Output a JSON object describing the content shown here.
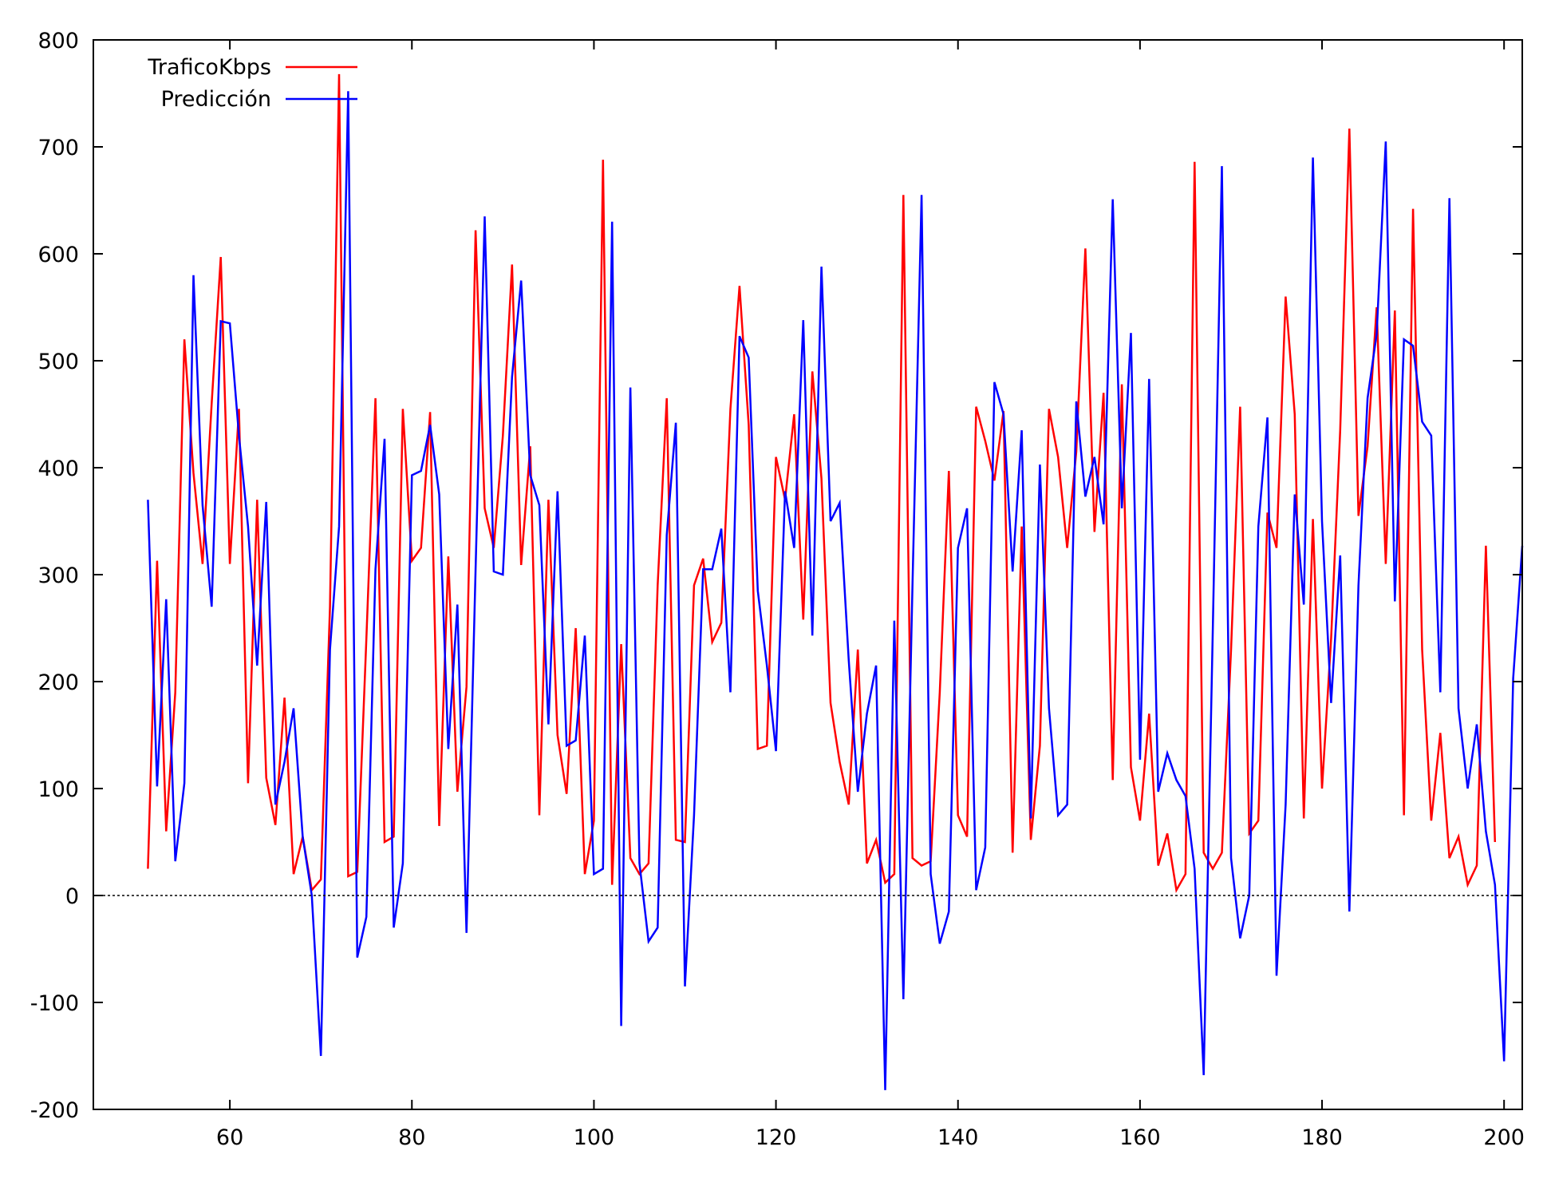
{
  "chart_data": {
    "type": "line",
    "title": "",
    "xlabel": "",
    "ylabel": "",
    "xlim": [
      45,
      202
    ],
    "ylim": [
      -200,
      800
    ],
    "x_ticks": [
      60,
      80,
      100,
      120,
      140,
      160,
      180,
      200
    ],
    "y_ticks": [
      -200,
      -100,
      0,
      100,
      200,
      300,
      400,
      500,
      600,
      700,
      800
    ],
    "x_tick_labels": [
      "60",
      "80",
      "100",
      "120",
      "140",
      "160",
      "180",
      "200"
    ],
    "y_tick_labels": [
      "-200",
      "-100",
      "0",
      "100",
      "200",
      "300",
      "400",
      "500",
      "600",
      "700",
      "800"
    ],
    "zero_line": true,
    "grid": false,
    "legend_position": "top-left",
    "x_start": 51,
    "series": [
      {
        "name": "TraficoKbps",
        "color": "#ff0000",
        "values": [
          25,
          313,
          60,
          190,
          520,
          395,
          310,
          460,
          597,
          310,
          455,
          105,
          370,
          110,
          66,
          185,
          20,
          55,
          5,
          15,
          270,
          768,
          18,
          22,
          240,
          465,
          50,
          55,
          455,
          313,
          325,
          452,
          65,
          317,
          97,
          195,
          622,
          362,
          325,
          430,
          590,
          309,
          420,
          75,
          370,
          150,
          95,
          250,
          20,
          70,
          688,
          10,
          235,
          35,
          20,
          30,
          290,
          465,
          52,
          50,
          290,
          315,
          237,
          255,
          455,
          570,
          440,
          137,
          140,
          410,
          370,
          450,
          258,
          490,
          390,
          180,
          125,
          85,
          230,
          30,
          52,
          12,
          20,
          655,
          35,
          28,
          32,
          190,
          397,
          75,
          55,
          457,
          425,
          388,
          453,
          40,
          345,
          52,
          140,
          455,
          410,
          325,
          415,
          605,
          340,
          470,
          108,
          478,
          120,
          70,
          170,
          28,
          58,
          5,
          20,
          686,
          40,
          25,
          40,
          230,
          457,
          58,
          70,
          358,
          325,
          560,
          450,
          72,
          352,
          100,
          240,
          435,
          717,
          355,
          420,
          550,
          310,
          547,
          75,
          642,
          230,
          70,
          152,
          35,
          55,
          10,
          28,
          327,
          50
        ]
      },
      {
        "name": "Predicción",
        "color": "#0000ff",
        "values": [
          370,
          102,
          277,
          32,
          105,
          580,
          365,
          270,
          537,
          535,
          430,
          345,
          215,
          368,
          85,
          125,
          175,
          55,
          0,
          -150,
          230,
          345,
          752,
          -58,
          -20,
          305,
          427,
          -30,
          30,
          393,
          397,
          440,
          375,
          137,
          272,
          -35,
          305,
          635,
          303,
          300,
          485,
          575,
          393,
          365,
          160,
          378,
          140,
          145,
          243,
          20,
          25,
          630,
          -122,
          475,
          30,
          -43,
          -30,
          337,
          442,
          -85,
          75,
          305,
          305,
          343,
          190,
          523,
          503,
          285,
          215,
          135,
          378,
          325,
          538,
          243,
          588,
          350,
          367,
          220,
          97,
          170,
          215,
          -182,
          257,
          -97,
          290,
          655,
          20,
          -45,
          -15,
          325,
          362,
          5,
          45,
          480,
          450,
          303,
          435,
          72,
          403,
          175,
          75,
          85,
          462,
          373,
          410,
          347,
          651,
          362,
          526,
          127,
          483,
          97,
          133,
          108,
          93,
          25,
          -168,
          248,
          682,
          35,
          -40,
          0,
          345,
          447,
          -75,
          85,
          375,
          272,
          690,
          350,
          180,
          318,
          -15,
          290,
          465,
          525,
          705,
          275,
          520,
          514,
          443,
          430,
          190,
          652,
          175,
          100,
          160,
          60,
          10,
          -155,
          203,
          327
        ]
      }
    ]
  }
}
